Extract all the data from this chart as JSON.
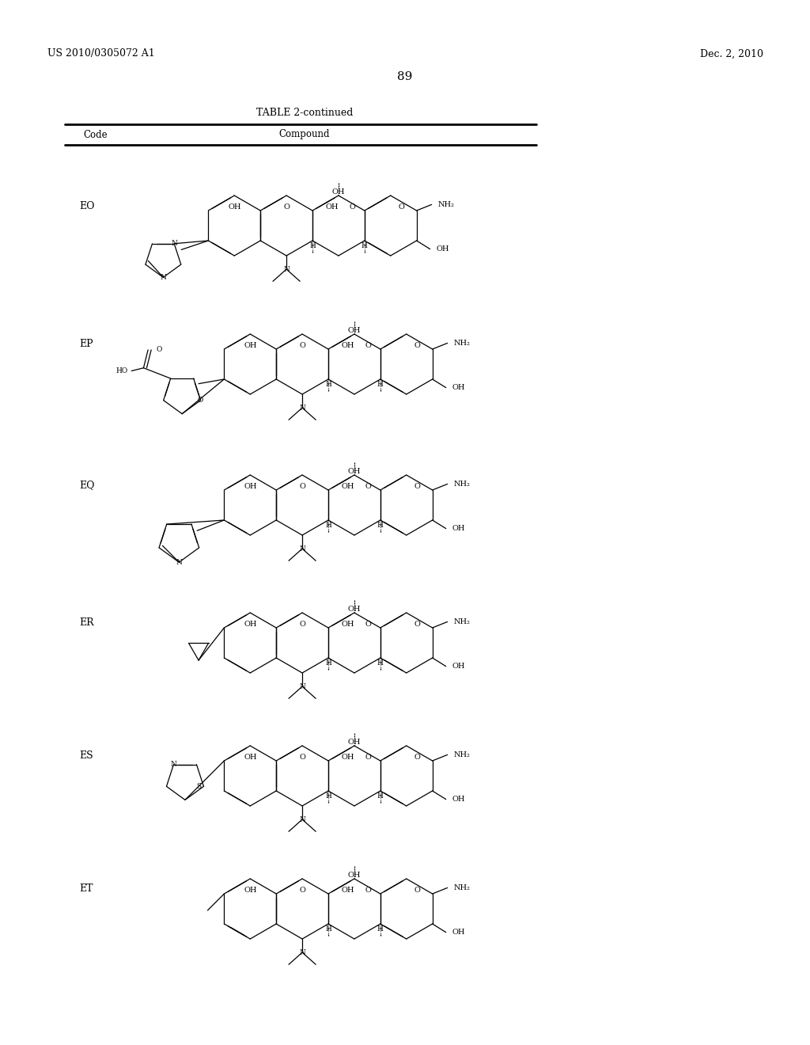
{
  "patent_number": "US 2010/0305072 A1",
  "patent_date": "Dec. 2, 2010",
  "page_number": "89",
  "table_title": "TABLE 2-continued",
  "col1": "Code",
  "col2": "Compound",
  "compounds": [
    "EO",
    "EP",
    "EQ",
    "ER",
    "ES",
    "ET"
  ],
  "row_centers_from_top": [
    285,
    460,
    638,
    812,
    980,
    1148
  ],
  "bg_color": "#ffffff",
  "text_color": "#000000"
}
